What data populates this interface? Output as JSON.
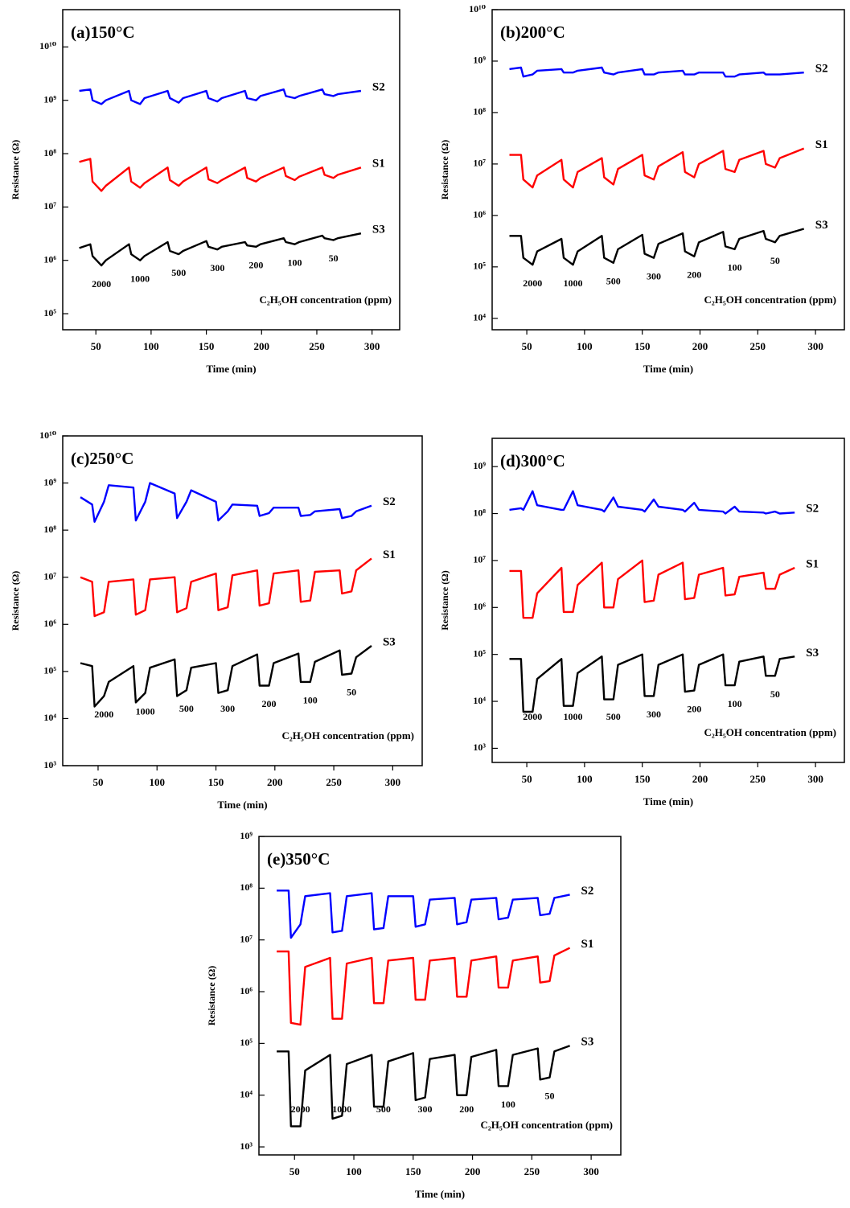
{
  "chart_data": [
    {
      "type": "line",
      "title": "(a)150°C",
      "xlabel": "Time (min)",
      "ylabel": "Resistance (Ω)",
      "annotation": "C₂H₅OH  concentration (ppm)",
      "annotations": [
        "2000",
        "1000",
        "500",
        "300",
        "200",
        "100",
        "50"
      ],
      "log_y": true,
      "xlim": [
        20,
        325
      ],
      "xticks": [
        50,
        100,
        150,
        200,
        250,
        300
      ],
      "ylim": [
        50000,
        50000000000
      ],
      "yticks": [
        {
          "value": 100000,
          "label": "10⁵"
        },
        {
          "value": 1000000,
          "label": "10⁶"
        },
        {
          "value": 10000000,
          "label": "10⁷"
        },
        {
          "value": 100000000,
          "label": "10⁸"
        },
        {
          "value": 1000000000,
          "label": "10⁹"
        },
        {
          "value": 10000000000,
          "label": "10¹⁰"
        }
      ],
      "x": [
        35,
        45,
        47,
        55,
        59,
        80,
        82,
        90,
        94,
        115,
        117,
        125,
        129,
        150,
        152,
        160,
        164,
        185,
        187,
        195,
        199,
        220,
        222,
        230,
        234,
        255,
        257,
        265,
        269,
        290
      ],
      "series": [
        {
          "name": "S2",
          "color": "#0000ff",
          "values": [
            1500000000.0,
            1600000000.0,
            1000000000.0,
            850000000.0,
            1000000000.0,
            1500000000.0,
            1000000000.0,
            850000000.0,
            1100000000.0,
            1500000000.0,
            1100000000.0,
            900000000.0,
            1100000000.0,
            1500000000.0,
            1100000000.0,
            950000000.0,
            1100000000.0,
            1500000000.0,
            1100000000.0,
            1000000000.0,
            1200000000.0,
            1600000000.0,
            1200000000.0,
            1100000000.0,
            1200000000.0,
            1600000000.0,
            1300000000.0,
            1200000000.0,
            1300000000.0,
            1500000000.0
          ]
        },
        {
          "name": "S1",
          "color": "#ff0000",
          "values": [
            70000000.0,
            80000000.0,
            30000000.0,
            20000000.0,
            25000000.0,
            55000000.0,
            30000000.0,
            23000000.0,
            28000000.0,
            55000000.0,
            32000000.0,
            25000000.0,
            30000000.0,
            55000000.0,
            33000000.0,
            28000000.0,
            32000000.0,
            55000000.0,
            35000000.0,
            30000000.0,
            35000000.0,
            55000000.0,
            38000000.0,
            32000000.0,
            37000000.0,
            55000000.0,
            40000000.0,
            35000000.0,
            40000000.0,
            55000000.0
          ]
        },
        {
          "name": "S3",
          "color": "#000000",
          "values": [
            1700000.0,
            2000000.0,
            1200000.0,
            800000.0,
            1000000.0,
            2000000.0,
            1300000.0,
            1000000.0,
            1200000.0,
            2200000.0,
            1500000.0,
            1300000.0,
            1500000.0,
            2300000.0,
            1800000.0,
            1600000.0,
            1800000.0,
            2200000.0,
            1900000.0,
            1800000.0,
            2000000.0,
            2600000.0,
            2200000.0,
            2000000.0,
            2200000.0,
            2900000.0,
            2600000.0,
            2400000.0,
            2600000.0,
            3200000.0
          ]
        }
      ]
    },
    {
      "type": "line",
      "title": "(b)200°C",
      "xlabel": "Time (min)",
      "ylabel": "Resistance (Ω)",
      "annotation": "C₂H₅OH  concentration (ppm)",
      "annotations": [
        "2000",
        "1000",
        "500",
        "300",
        "200",
        "100",
        "50"
      ],
      "log_y": true,
      "xlim": [
        20,
        325
      ],
      "xticks": [
        50,
        100,
        150,
        200,
        250,
        300
      ],
      "ylim": [
        6000,
        10000000000
      ],
      "yticks": [
        {
          "value": 10000,
          "label": "10⁴"
        },
        {
          "value": 100000,
          "label": "10⁵"
        },
        {
          "value": 1000000,
          "label": "10⁶"
        },
        {
          "value": 10000000,
          "label": "10⁷"
        },
        {
          "value": 100000000,
          "label": "10⁸"
        },
        {
          "value": 1000000000,
          "label": "10⁹"
        },
        {
          "value": 10000000000,
          "label": "10¹⁰"
        }
      ],
      "x": [
        35,
        45,
        47,
        55,
        59,
        80,
        82,
        90,
        94,
        115,
        117,
        125,
        129,
        150,
        152,
        160,
        164,
        185,
        187,
        195,
        199,
        220,
        222,
        230,
        234,
        255,
        257,
        265,
        269,
        290
      ],
      "series": [
        {
          "name": "S2",
          "color": "#0000ff",
          "values": [
            700000000.0,
            750000000.0,
            500000000.0,
            550000000.0,
            650000000.0,
            700000000.0,
            600000000.0,
            600000000.0,
            650000000.0,
            750000000.0,
            600000000.0,
            550000000.0,
            600000000.0,
            700000000.0,
            550000000.0,
            550000000.0,
            600000000.0,
            650000000.0,
            550000000.0,
            550000000.0,
            600000000.0,
            600000000.0,
            500000000.0,
            500000000.0,
            550000000.0,
            600000000.0,
            550000000.0,
            550000000.0,
            550000000.0,
            600000000.0
          ]
        },
        {
          "name": "S1",
          "color": "#ff0000",
          "values": [
            15000000.0,
            15000000.0,
            5000000.0,
            3500000.0,
            6000000.0,
            12000000.0,
            5000000.0,
            3500000.0,
            7000000.0,
            13000000.0,
            5500000.0,
            4000000.0,
            8000000.0,
            15000000.0,
            6000000.0,
            5000000.0,
            9000000.0,
            17000000.0,
            7000000.0,
            5500000.0,
            10000000.0,
            18000000.0,
            8000000.0,
            7000000.0,
            12000000.0,
            18000000.0,
            10000000.0,
            8500000.0,
            13000000.0,
            20000000.0
          ]
        },
        {
          "name": "S3",
          "color": "#000000",
          "values": [
            400000.0,
            400000.0,
            150000.0,
            110000.0,
            200000.0,
            350000.0,
            150000.0,
            110000.0,
            200000.0,
            400000.0,
            150000.0,
            120000.0,
            220000.0,
            420000.0,
            180000.0,
            150000.0,
            280000.0,
            450000.0,
            200000.0,
            160000.0,
            300000.0,
            480000.0,
            250000.0,
            220000.0,
            350000.0,
            500000.0,
            350000.0,
            300000.0,
            400000.0,
            550000.0
          ]
        }
      ]
    },
    {
      "type": "line",
      "title": "(c)250°C",
      "xlabel": "Time (min)",
      "ylabel": "Resistance (Ω)",
      "annotation": "C₂H₅OH  concentration (ppm)",
      "annotations": [
        "2000",
        "1000",
        "500",
        "300",
        "200",
        "100",
        "50"
      ],
      "log_y": true,
      "xlim": [
        20,
        325
      ],
      "xticks": [
        50,
        100,
        150,
        200,
        250,
        300
      ],
      "ylim": [
        1000,
        10000000000
      ],
      "yticks": [
        {
          "value": 1000,
          "label": "10³"
        },
        {
          "value": 10000,
          "label": "10⁴"
        },
        {
          "value": 100000,
          "label": "10⁵"
        },
        {
          "value": 1000000,
          "label": "10⁶"
        },
        {
          "value": 10000000,
          "label": "10⁷"
        },
        {
          "value": 100000000,
          "label": "10⁸"
        },
        {
          "value": 1000000000,
          "label": "10⁹"
        },
        {
          "value": 10000000000,
          "label": "10¹⁰"
        }
      ],
      "x": [
        35,
        45,
        47,
        55,
        59,
        80,
        82,
        90,
        94,
        115,
        117,
        125,
        129,
        150,
        152,
        160,
        164,
        185,
        187,
        195,
        199,
        220,
        222,
        230,
        234,
        255,
        257,
        265,
        269,
        282
      ],
      "series": [
        {
          "name": "S2",
          "color": "#0000ff",
          "values": [
            500000000.0,
            350000000.0,
            150000000.0,
            400000000.0,
            900000000.0,
            800000000.0,
            160000000.0,
            400000000.0,
            1000000000.0,
            600000000.0,
            180000000.0,
            400000000.0,
            700000000.0,
            400000000.0,
            160000000.0,
            250000000.0,
            350000000.0,
            330000000.0,
            200000000.0,
            230000000.0,
            300000000.0,
            300000000.0,
            200000000.0,
            210000000.0,
            250000000.0,
            280000000.0,
            180000000.0,
            200000000.0,
            250000000.0,
            330000000.0
          ]
        },
        {
          "name": "S1",
          "color": "#ff0000",
          "values": [
            10000000.0,
            8000000.0,
            1500000.0,
            1800000.0,
            8000000.0,
            9000000.0,
            1600000.0,
            2000000.0,
            9000000.0,
            10000000.0,
            1800000.0,
            2200000.0,
            8000000.0,
            12000000.0,
            2000000.0,
            2300000.0,
            11000000.0,
            14000000.0,
            2500000.0,
            2800000.0,
            12000000.0,
            14000000.0,
            3000000.0,
            3200000.0,
            13000000.0,
            14000000.0,
            4500000.0,
            5000000.0,
            14000000.0,
            25000000.0
          ]
        },
        {
          "name": "S3",
          "color": "#000000",
          "values": [
            150000.0,
            130000.0,
            18000.0,
            30000.0,
            60000.0,
            130000.0,
            22000.0,
            35000.0,
            120000.0,
            180000.0,
            30000.0,
            40000.0,
            120000.0,
            150000.0,
            35000.0,
            40000.0,
            130000.0,
            230000.0,
            50000.0,
            50000.0,
            150000.0,
            240000.0,
            60000.0,
            60000.0,
            160000.0,
            280000.0,
            85000.0,
            90000.0,
            200000.0,
            350000.0
          ]
        }
      ]
    },
    {
      "type": "line",
      "title": "(d)300°C",
      "xlabel": "Time (min)",
      "ylabel": "Resistance (Ω)",
      "annotation": "C₂H₅OH  concentration (ppm)",
      "annotations": [
        "2000",
        "1000",
        "500",
        "300",
        "200",
        "100",
        "50"
      ],
      "log_y": true,
      "xlim": [
        20,
        325
      ],
      "xticks": [
        50,
        100,
        150,
        200,
        250,
        300
      ],
      "ylim": [
        500,
        4000000000
      ],
      "yticks": [
        {
          "value": 1000,
          "label": "10³"
        },
        {
          "value": 10000,
          "label": "10⁴"
        },
        {
          "value": 100000,
          "label": "10⁵"
        },
        {
          "value": 1000000,
          "label": "10⁶"
        },
        {
          "value": 10000000,
          "label": "10⁷"
        },
        {
          "value": 100000000,
          "label": "10⁸"
        },
        {
          "value": 1000000000,
          "label": "10⁹"
        }
      ],
      "x": [
        35,
        45,
        47,
        55,
        59,
        80,
        82,
        90,
        94,
        115,
        117,
        125,
        129,
        150,
        152,
        160,
        164,
        185,
        187,
        195,
        199,
        220,
        222,
        230,
        234,
        255,
        257,
        265,
        269,
        282
      ],
      "series": [
        {
          "name": "S2",
          "color": "#0000ff",
          "values": [
            120000000.0,
            130000000.0,
            120000000.0,
            300000000.0,
            150000000.0,
            120000000.0,
            120000000.0,
            300000000.0,
            150000000.0,
            120000000.0,
            110000000.0,
            220000000.0,
            140000000.0,
            120000000.0,
            110000000.0,
            200000000.0,
            140000000.0,
            120000000.0,
            110000000.0,
            170000000.0,
            120000000.0,
            110000000.0,
            100000000.0,
            140000000.0,
            110000000.0,
            105000000.0,
            100000000.0,
            110000000.0,
            100000000.0,
            105000000.0
          ]
        },
        {
          "name": "S1",
          "color": "#ff0000",
          "values": [
            6000000.0,
            6000000.0,
            600000.0,
            600000.0,
            2000000.0,
            7000000.0,
            800000.0,
            800000.0,
            3000000.0,
            9000000.0,
            1000000.0,
            1000000.0,
            4000000.0,
            10000000.0,
            1300000.0,
            1400000.0,
            5000000.0,
            9000000.0,
            1500000.0,
            1600000.0,
            5000000.0,
            7000000.0,
            1800000.0,
            1900000.0,
            4500000.0,
            5500000.0,
            2500000.0,
            2500000.0,
            5000000.0,
            7000000.0
          ]
        },
        {
          "name": "S3",
          "color": "#000000",
          "values": [
            80000.0,
            80000.0,
            6000.0,
            6000.0,
            30000.0,
            80000.0,
            8000.0,
            8000.0,
            40000.0,
            90000.0,
            11000.0,
            11000.0,
            60000.0,
            100000.0,
            13000.0,
            13000.0,
            60000.0,
            100000.0,
            16000.0,
            17000.0,
            60000.0,
            100000.0,
            22000.0,
            22000.0,
            70000.0,
            90000.0,
            35000.0,
            35000.0,
            80000.0,
            90000.0
          ]
        }
      ]
    },
    {
      "type": "line",
      "title": "(e)350°C",
      "xlabel": "Time (min)",
      "ylabel": "Resistance (Ω)",
      "annotation": "C₂H₅OH  concentration (ppm)",
      "annotations": [
        "2000",
        "1000",
        "500",
        "300",
        "200",
        "100",
        "50"
      ],
      "log_y": true,
      "xlim": [
        20,
        325
      ],
      "xticks": [
        50,
        100,
        150,
        200,
        250,
        300
      ],
      "ylim": [
        700,
        1000000000
      ],
      "yticks": [
        {
          "value": 1000,
          "label": "10³"
        },
        {
          "value": 10000,
          "label": "10⁴"
        },
        {
          "value": 100000,
          "label": "10⁵"
        },
        {
          "value": 1000000,
          "label": "10⁶"
        },
        {
          "value": 10000000,
          "label": "10⁷"
        },
        {
          "value": 100000000,
          "label": "10⁸"
        },
        {
          "value": 1000000000,
          "label": "10⁹"
        }
      ],
      "x": [
        35,
        45,
        47,
        55,
        59,
        80,
        82,
        90,
        94,
        115,
        117,
        125,
        129,
        150,
        152,
        160,
        164,
        185,
        187,
        195,
        199,
        220,
        222,
        230,
        234,
        255,
        257,
        265,
        269,
        282
      ],
      "series": [
        {
          "name": "S2",
          "color": "#0000ff",
          "values": [
            90000000.0,
            90000000.0,
            11000000.0,
            20000000.0,
            70000000.0,
            80000000.0,
            14000000.0,
            15000000.0,
            70000000.0,
            80000000.0,
            16000000.0,
            17000000.0,
            70000000.0,
            70000000.0,
            18000000.0,
            20000000.0,
            60000000.0,
            65000000.0,
            20000000.0,
            22000000.0,
            60000000.0,
            65000000.0,
            25000000.0,
            27000000.0,
            60000000.0,
            65000000.0,
            30000000.0,
            32000000.0,
            65000000.0,
            75000000.0
          ]
        },
        {
          "name": "S1",
          "color": "#ff0000",
          "values": [
            6000000.0,
            6000000.0,
            250000.0,
            230000.0,
            3000000.0,
            4500000.0,
            300000.0,
            300000.0,
            3500000.0,
            4500000.0,
            600000.0,
            600000.0,
            4000000.0,
            4500000.0,
            700000.0,
            700000.0,
            4000000.0,
            4500000.0,
            800000.0,
            800000.0,
            4000000.0,
            4800000.0,
            1200000.0,
            1200000.0,
            4000000.0,
            4800000.0,
            1500000.0,
            1600000.0,
            5000000.0,
            7000000.0
          ]
        },
        {
          "name": "S3",
          "color": "#000000",
          "values": [
            70000.0,
            70000.0,
            2500.0,
            2500.0,
            30000.0,
            60000.0,
            3500.0,
            4000.0,
            40000.0,
            60000.0,
            6000.0,
            6000.0,
            45000.0,
            65000.0,
            8000.0,
            9000.0,
            50000.0,
            60000.0,
            10000.0,
            10000.0,
            55000.0,
            75000.0,
            15000.0,
            15000.0,
            60000.0,
            80000.0,
            20000.0,
            22000.0,
            70000.0,
            90000.0
          ]
        }
      ]
    }
  ]
}
